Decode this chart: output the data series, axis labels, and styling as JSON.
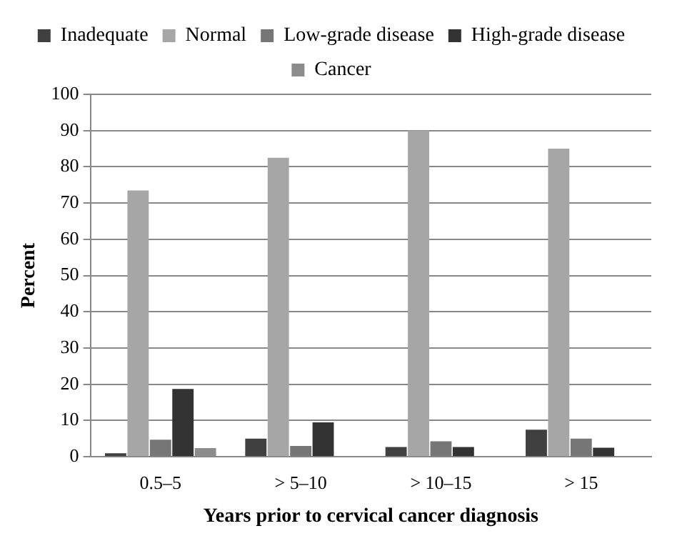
{
  "chart_data": {
    "type": "bar",
    "xlabel": "Years prior to cervical cancer diagnosis",
    "ylabel": "Percent",
    "categories": [
      "0.5–5",
      "> 5–10",
      "> 10–15",
      "> 15"
    ],
    "series": [
      {
        "name": "Inadequate",
        "color": "#404040",
        "values": [
          1,
          5,
          2.7,
          7.5
        ]
      },
      {
        "name": "Normal",
        "color": "#a6a6a6",
        "values": [
          73.5,
          82.5,
          90,
          85
        ]
      },
      {
        "name": "Low-grade disease",
        "color": "#767676",
        "values": [
          4.7,
          3,
          4.3,
          5
        ]
      },
      {
        "name": "High-grade disease",
        "color": "#333333",
        "values": [
          18.7,
          9.5,
          2.7,
          2.5
        ]
      },
      {
        "name": "Cancer",
        "color": "#8c8c8c",
        "values": [
          2.4,
          0,
          0,
          0
        ]
      }
    ],
    "ylim": [
      0,
      100
    ],
    "yticks": [
      0,
      10,
      20,
      30,
      40,
      50,
      60,
      70,
      80,
      90,
      100
    ],
    "grid": "y",
    "legend": "top"
  }
}
